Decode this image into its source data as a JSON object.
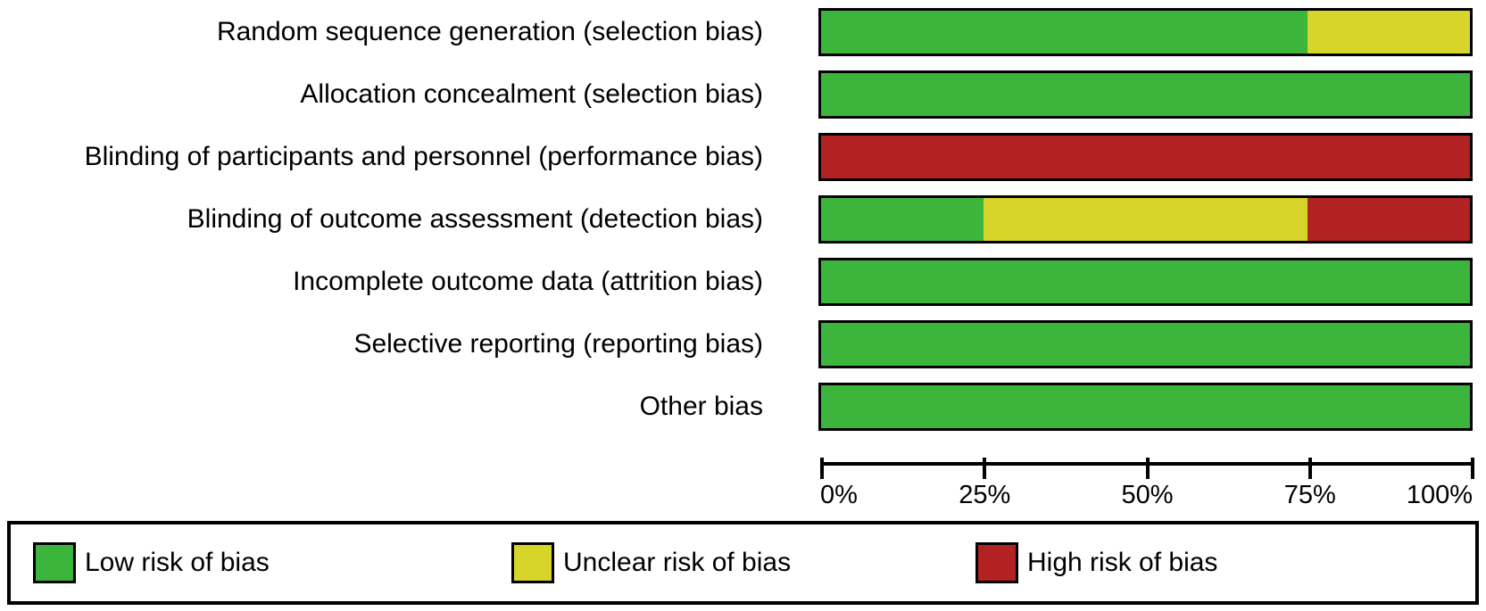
{
  "chart_data": {
    "type": "bar",
    "subtype": "horizontal-stacked",
    "title": "",
    "xlabel": "",
    "ylabel": "",
    "xlim": [
      0,
      100
    ],
    "grid": false,
    "legend_position": "bottom",
    "categories": [
      "Random sequence generation (selection bias)",
      "Allocation concealment (selection bias)",
      "Blinding of participants and personnel (performance bias)",
      "Blinding of outcome assessment (detection bias)",
      "Incomplete outcome data (attrition bias)",
      "Selective reporting (reporting bias)",
      "Other bias"
    ],
    "series": [
      {
        "name": "Low risk of bias",
        "color": "#3CB53C",
        "values": [
          75,
          100,
          0,
          25,
          100,
          100,
          100
        ]
      },
      {
        "name": "Unclear risk of bias",
        "color": "#D7D529",
        "values": [
          25,
          0,
          0,
          50,
          0,
          0,
          0
        ]
      },
      {
        "name": "High risk of bias",
        "color": "#B32222",
        "values": [
          0,
          0,
          100,
          25,
          0,
          0,
          0
        ]
      }
    ],
    "x_ticks": [
      "0%",
      "25%",
      "50%",
      "75%",
      "100%"
    ],
    "x_tick_values": [
      0,
      25,
      50,
      75,
      100
    ]
  },
  "colors": {
    "low_risk": "#3CB53C",
    "unclear_risk": "#D7D529",
    "high_risk": "#B32222",
    "border": "#000000",
    "background": "#ffffff"
  }
}
